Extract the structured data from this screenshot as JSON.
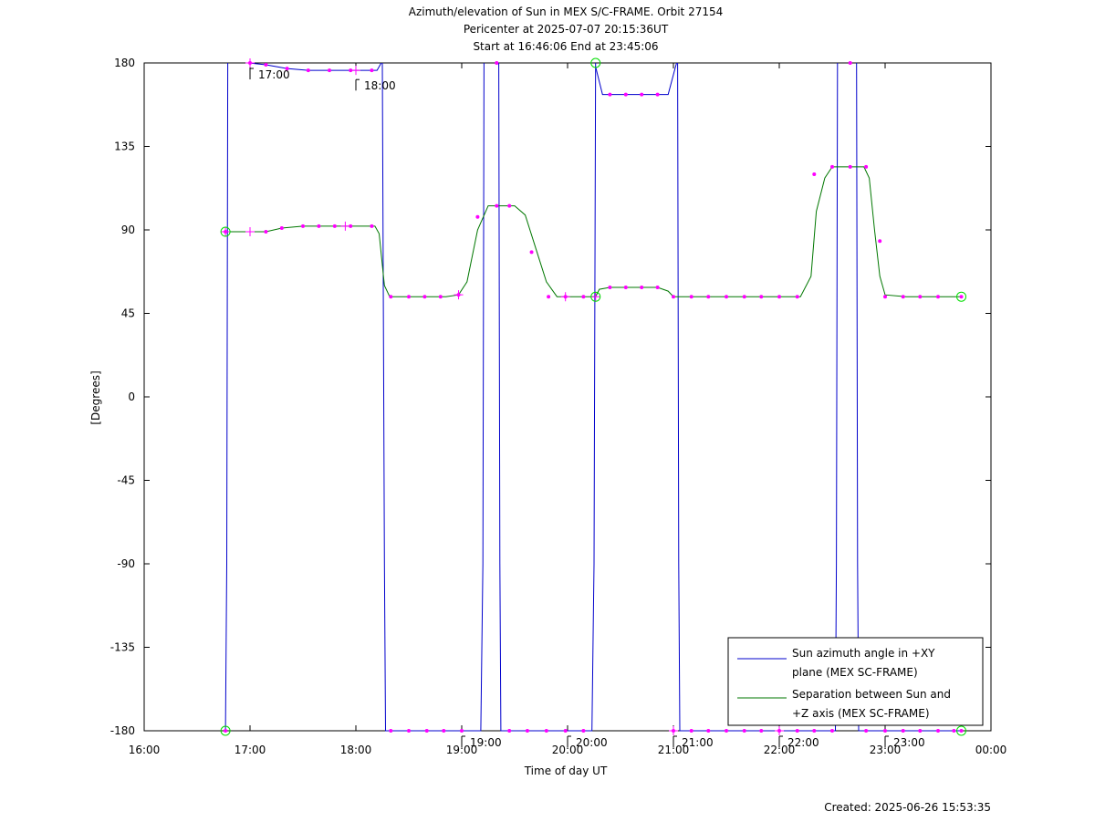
{
  "chart_data": {
    "type": "line",
    "title_lines": [
      "Azimuth/elevation of Sun in MEX S/C-FRAME.  Orbit 27154",
      "Pericenter at 2025-07-07 20:15:36UT",
      "Start at 16:46:06 End at 23:45:06"
    ],
    "xlabel": "Time of day UT",
    "ylabel": "[Degrees]",
    "footer": "Created: 2025-06-26 15:53:35",
    "xlim": [
      16.0,
      24.0
    ],
    "ylim": [
      -180,
      180
    ],
    "x_ticks": [
      {
        "v": 16,
        "label": "16:00"
      },
      {
        "v": 17,
        "label": "17:00"
      },
      {
        "v": 18,
        "label": "18:00"
      },
      {
        "v": 19,
        "label": "19:00"
      },
      {
        "v": 20,
        "label": "20:00"
      },
      {
        "v": 21,
        "label": "21:00"
      },
      {
        "v": 22,
        "label": "22:00"
      },
      {
        "v": 23,
        "label": "23:00"
      },
      {
        "v": 24,
        "label": "00:00"
      }
    ],
    "y_ticks": [
      {
        "v": 180,
        "label": "180"
      },
      {
        "v": 135,
        "label": "135"
      },
      {
        "v": 90,
        "label": "90"
      },
      {
        "v": 45,
        "label": "45"
      },
      {
        "v": 0,
        "label": "0"
      },
      {
        "v": -45,
        "label": "-45"
      },
      {
        "v": -90,
        "label": "-90"
      },
      {
        "v": -135,
        "label": "-135"
      },
      {
        "v": -180,
        "label": "-180"
      }
    ],
    "hour_annotations": [
      {
        "x": 17.0,
        "y": 180,
        "label": "17:00"
      },
      {
        "x": 18.0,
        "y": 174,
        "label": "18:00"
      },
      {
        "x": 19.0,
        "y": -180,
        "label": "19:00"
      },
      {
        "x": 20.0,
        "y": -180,
        "label": "20:00"
      },
      {
        "x": 21.0,
        "y": -180,
        "label": "21:00"
      },
      {
        "x": 22.0,
        "y": -180,
        "label": "22:00"
      },
      {
        "x": 23.0,
        "y": -180,
        "label": "23:00"
      }
    ],
    "series": [
      {
        "name": "Sun azimuth angle in +XY plane (MEX SC-FRAME)",
        "legend_lines": [
          "Sun azimuth angle in +XY",
          "plane (MEX SC-FRAME)"
        ],
        "color": "#0000cc",
        "segments": [
          [
            [
              16.768,
              -180
            ],
            [
              16.78,
              -90
            ],
            [
              16.79,
              180
            ]
          ],
          [
            [
              16.99,
              180
            ],
            [
              17.15,
              179
            ],
            [
              17.35,
              177
            ],
            [
              17.55,
              176
            ],
            [
              17.75,
              176
            ],
            [
              17.95,
              176
            ],
            [
              18.2,
              176
            ],
            [
              18.24,
              180
            ]
          ],
          [
            [
              18.25,
              180
            ],
            [
              18.27,
              -90
            ],
            [
              18.28,
              -180
            ],
            [
              19.18,
              -180
            ],
            [
              19.2,
              -90
            ],
            [
              19.21,
              180
            ]
          ],
          [
            [
              19.35,
              180
            ],
            [
              19.36,
              -90
            ],
            [
              19.37,
              -180
            ],
            [
              20.23,
              -180
            ],
            [
              20.25,
              -90
            ],
            [
              20.265,
              180
            ]
          ],
          [
            [
              20.265,
              178
            ],
            [
              20.33,
              163
            ],
            [
              20.95,
              163
            ],
            [
              21.02,
              178
            ],
            [
              21.03,
              180
            ]
          ],
          [
            [
              21.04,
              180
            ],
            [
              21.05,
              -90
            ],
            [
              21.06,
              -180
            ],
            [
              22.53,
              -180
            ],
            [
              22.54,
              -90
            ],
            [
              22.55,
              180
            ]
          ],
          [
            [
              22.73,
              180
            ],
            [
              22.74,
              -90
            ],
            [
              22.75,
              -180
            ],
            [
              23.72,
              -180
            ]
          ]
        ]
      },
      {
        "name": "Separation between Sun and +Z axis (MEX SC-FRAME)",
        "legend_lines": [
          "Separation between Sun and",
          "+Z axis (MEX SC-FRAME)"
        ],
        "color": "#007700",
        "segments": [
          [
            [
              16.768,
              89
            ],
            [
              16.9,
              89
            ],
            [
              17.15,
              89
            ],
            [
              17.3,
              91
            ],
            [
              17.5,
              92
            ],
            [
              17.7,
              92
            ],
            [
              17.9,
              92
            ],
            [
              18.18,
              92
            ],
            [
              18.22,
              88
            ],
            [
              18.27,
              60
            ],
            [
              18.32,
              54
            ],
            [
              18.5,
              54
            ],
            [
              18.85,
              54
            ],
            [
              18.97,
              55
            ],
            [
              19.05,
              62
            ],
            [
              19.15,
              90
            ],
            [
              19.25,
              103
            ],
            [
              19.5,
              103
            ],
            [
              19.6,
              98
            ],
            [
              19.7,
              80
            ],
            [
              19.8,
              62
            ],
            [
              19.9,
              54
            ],
            [
              20.265,
              54
            ],
            [
              20.3,
              58
            ],
            [
              20.4,
              59
            ],
            [
              20.7,
              59
            ],
            [
              20.85,
              59
            ],
            [
              20.95,
              57
            ],
            [
              21.0,
              54
            ],
            [
              21.5,
              54
            ],
            [
              22.2,
              54
            ],
            [
              22.3,
              65
            ],
            [
              22.35,
              100
            ],
            [
              22.43,
              118
            ],
            [
              22.5,
              124
            ],
            [
              22.8,
              124
            ],
            [
              22.85,
              118
            ],
            [
              22.9,
              90
            ],
            [
              22.95,
              65
            ],
            [
              23.0,
              55
            ],
            [
              23.2,
              54
            ],
            [
              23.72,
              54
            ]
          ]
        ]
      }
    ],
    "markers": {
      "color": "#ff00ff",
      "points": [
        [
          17.0,
          180
        ],
        [
          17.15,
          179
        ],
        [
          17.35,
          177
        ],
        [
          17.55,
          176
        ],
        [
          17.75,
          176
        ],
        [
          17.95,
          176
        ],
        [
          18.15,
          176
        ],
        [
          16.768,
          89
        ],
        [
          17.15,
          89
        ],
        [
          17.3,
          91
        ],
        [
          17.5,
          92
        ],
        [
          17.65,
          92
        ],
        [
          17.8,
          92
        ],
        [
          17.95,
          92
        ],
        [
          18.15,
          92
        ],
        [
          18.33,
          54
        ],
        [
          18.5,
          54
        ],
        [
          18.65,
          54
        ],
        [
          18.8,
          54
        ],
        [
          18.97,
          55
        ],
        [
          19.15,
          97
        ],
        [
          19.33,
          103
        ],
        [
          19.45,
          103
        ],
        [
          19.66,
          78
        ],
        [
          19.82,
          54
        ],
        [
          19.98,
          54
        ],
        [
          20.15,
          54
        ],
        [
          20.4,
          59
        ],
        [
          20.55,
          59
        ],
        [
          20.7,
          59
        ],
        [
          20.85,
          59
        ],
        [
          21.0,
          54
        ],
        [
          21.17,
          54
        ],
        [
          21.33,
          54
        ],
        [
          21.5,
          54
        ],
        [
          21.67,
          54
        ],
        [
          21.83,
          54
        ],
        [
          22.0,
          54
        ],
        [
          22.17,
          54
        ],
        [
          22.33,
          120
        ],
        [
          22.5,
          124
        ],
        [
          22.67,
          124
        ],
        [
          22.82,
          124
        ],
        [
          22.95,
          84
        ],
        [
          23.0,
          54
        ],
        [
          23.17,
          54
        ],
        [
          23.33,
          54
        ],
        [
          23.5,
          54
        ],
        [
          23.72,
          54
        ],
        [
          18.33,
          -180
        ],
        [
          18.5,
          -180
        ],
        [
          18.67,
          -180
        ],
        [
          18.83,
          -180
        ],
        [
          19.0,
          -180
        ],
        [
          19.45,
          -180
        ],
        [
          19.62,
          -180
        ],
        [
          19.8,
          -180
        ],
        [
          19.98,
          -180
        ],
        [
          20.15,
          -180
        ],
        [
          21.0,
          -180
        ],
        [
          21.17,
          -180
        ],
        [
          21.33,
          -180
        ],
        [
          21.5,
          -180
        ],
        [
          21.67,
          -180
        ],
        [
          21.83,
          -180
        ],
        [
          22.0,
          -180
        ],
        [
          22.17,
          -180
        ],
        [
          22.33,
          -180
        ],
        [
          22.5,
          -180
        ],
        [
          22.82,
          -180
        ],
        [
          23.0,
          -180
        ],
        [
          23.17,
          -180
        ],
        [
          23.33,
          -180
        ],
        [
          23.5,
          -180
        ],
        [
          23.65,
          -180
        ],
        [
          20.4,
          163
        ],
        [
          20.55,
          163
        ],
        [
          20.7,
          163
        ],
        [
          20.85,
          163
        ],
        [
          19.33,
          180
        ],
        [
          22.67,
          180
        ],
        [
          16.768,
          -180
        ],
        [
          23.72,
          -180
        ]
      ],
      "plus_points": [
        [
          17.0,
          180
        ],
        [
          16.768,
          89
        ],
        [
          17.0,
          89
        ],
        [
          17.9,
          92
        ],
        [
          18.97,
          55
        ],
        [
          20.265,
          54
        ],
        [
          19.98,
          54
        ],
        [
          21.0,
          -180
        ],
        [
          22.0,
          -180
        ],
        [
          18.0,
          176
        ]
      ],
      "ring_points": [
        [
          16.768,
          -180
        ],
        [
          16.768,
          89
        ],
        [
          20.265,
          180
        ],
        [
          20.265,
          54
        ],
        [
          23.72,
          54
        ],
        [
          23.72,
          -180
        ]
      ],
      "ring_color": "#00dd00"
    }
  }
}
